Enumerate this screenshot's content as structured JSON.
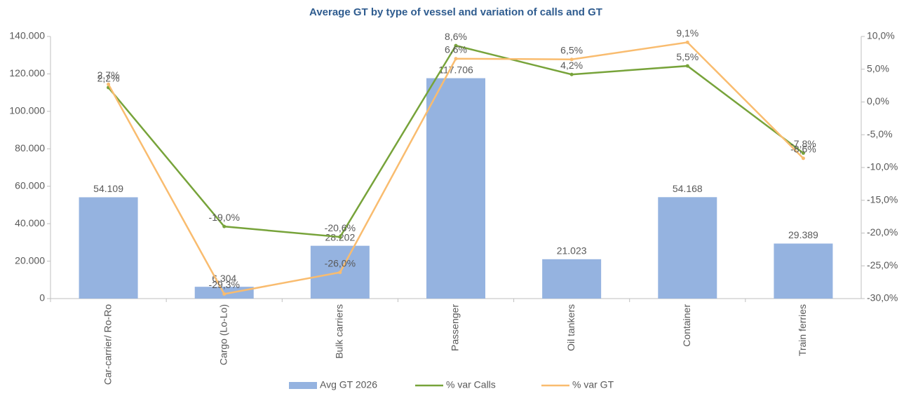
{
  "chart_data": {
    "type": "bar",
    "title": "Average GT by type of vessel and variation of calls and GT",
    "categories": [
      "Car-carrier/ Ro-Ro",
      "Cargo (Lo-Lo)",
      "Bulk carriers",
      "Passenger",
      "Oil tankers",
      "Container",
      "Train ferries"
    ],
    "series": [
      {
        "name": "Avg GT 2026",
        "type": "bar",
        "color": "#95b3e0",
        "axis": "y",
        "values": [
          54109,
          6304,
          28202,
          117706,
          21023,
          54168,
          29389
        ],
        "value_labels": [
          "54.109",
          "6.304",
          "28.202",
          "117.706",
          "21.023",
          "54.168",
          "29.389"
        ]
      },
      {
        "name": "% var Calls",
        "type": "line",
        "color": "#77a33a",
        "axis": "y2",
        "values": [
          2.2,
          -19.0,
          -20.6,
          8.6,
          4.2,
          5.5,
          -7.8
        ],
        "value_labels": [
          "2,2%",
          "-19,0%",
          "-20,6%",
          "8,6%",
          "4,2%",
          "5,5%",
          "-7,8%"
        ]
      },
      {
        "name": "% var GT",
        "type": "line",
        "color": "#f9bc6f",
        "axis": "y2",
        "values": [
          2.7,
          -29.3,
          -26.0,
          6.6,
          6.5,
          9.1,
          -8.6
        ],
        "value_labels": [
          "2,7%",
          "-29,3%",
          "-26,0%",
          "6,6%",
          "6,5%",
          "9,1%",
          "-8,6%"
        ]
      }
    ],
    "ylim": [
      0,
      140000
    ],
    "yticks": [
      0,
      {
        "value": 20000,
        "label": "20.000"
      },
      {
        "value": 40000,
        "label": "40.000"
      },
      {
        "value": 60000,
        "label": "60.000"
      },
      {
        "value": 80000,
        "label": "80.000"
      },
      {
        "value": 100000,
        "label": "100.000"
      },
      {
        "value": 120000,
        "label": "120.000"
      },
      {
        "value": 140000,
        "label": "140.000"
      }
    ],
    "y2lim": [
      -30,
      10
    ],
    "y2ticks": [
      {
        "value": -30,
        "label": "-30,0%"
      },
      {
        "value": -25,
        "label": "-25,0%"
      },
      {
        "value": -20,
        "label": "-20,0%"
      },
      {
        "value": -15,
        "label": "-15,0%"
      },
      {
        "value": -10,
        "label": "-10,0%"
      },
      {
        "value": -5,
        "label": "-5,0%"
      },
      {
        "value": 0,
        "label": "0,0%"
      },
      {
        "value": 5,
        "label": "5,0%"
      },
      {
        "value": 10,
        "label": "10,0%"
      }
    ],
    "legend": "bottom"
  }
}
